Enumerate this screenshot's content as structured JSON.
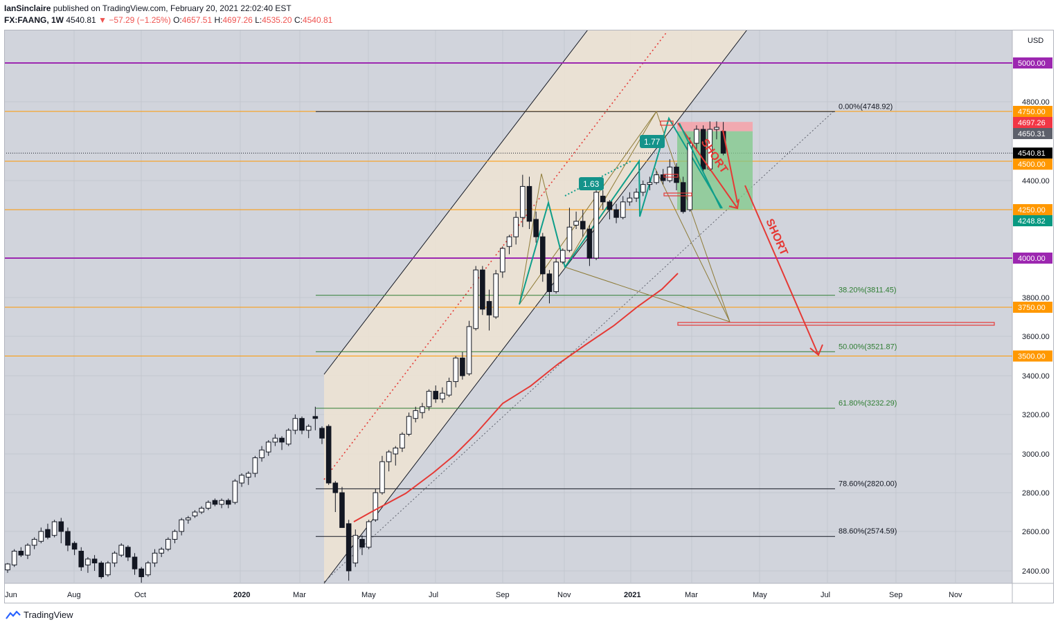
{
  "header": {
    "author": "IanSinclaire",
    "published_text": "published on TradingView.com, February 20, 2021 22:02:40 EST",
    "symbol": "FX:FAANG, 1W",
    "last": "4540.81",
    "change": "−57.29 (−1.25%)",
    "o_label": "O:",
    "o_value": "4657.51",
    "h_label": "H:",
    "h_value": "4697.26",
    "l_label": "L:",
    "l_value": "4535.20",
    "c_label": "C:",
    "c_value": "4540.81"
  },
  "footer": {
    "brand": "TradingView"
  },
  "chart_data": {
    "type": "candlestick",
    "currency": "USD",
    "x_labels": [
      "Jun",
      "Aug",
      "Oct",
      "2020",
      "Mar",
      "May",
      "Jul",
      "Sep",
      "Nov",
      "2021",
      "Mar",
      "May",
      "Jul",
      "Sep",
      "Nov"
    ],
    "y_ticks": [
      "4800.00",
      "4400.00",
      "3800.00",
      "3600.00",
      "3400.00",
      "3200.00",
      "3000.00",
      "2800.00",
      "2600.00",
      "2400.00"
    ],
    "ylim": [
      2340,
      5170
    ],
    "price_labels": [
      {
        "text": "5000.00",
        "value": 5000,
        "color": "#9c27b0"
      },
      {
        "text": "4750.00",
        "value": 4750,
        "color": "#ff9800"
      },
      {
        "text": "4697.26",
        "value": 4697.26,
        "color": "#f23645"
      },
      {
        "text": "4650.31",
        "value": 4650.31,
        "color": "#5d606b"
      },
      {
        "text": "4540.81",
        "value": 4540.81,
        "color": "#000000"
      },
      {
        "text": "4500.00",
        "value": 4500,
        "color": "#ff9800"
      },
      {
        "text": "4250.00",
        "value": 4250,
        "color": "#ff9800"
      },
      {
        "text": "4248.82",
        "value": 4248.82,
        "color": "#089981"
      },
      {
        "text": "4000.00",
        "value": 4000,
        "color": "#9c27b0"
      },
      {
        "text": "3750.00",
        "value": 3750,
        "color": "#ff9800"
      },
      {
        "text": "3500.00",
        "value": 3500,
        "color": "#ff9800"
      }
    ],
    "fib_levels": [
      {
        "text": "0.00%(4748.92)",
        "value": 4748.92,
        "color": "#131722"
      },
      {
        "text": "38.20%(3811.45)",
        "value": 3811.45,
        "color": "#2e7d32"
      },
      {
        "text": "50.00%(3521.87)",
        "value": 3521.87,
        "color": "#2e7d32"
      },
      {
        "text": "61.80%(3232.29)",
        "value": 3232.29,
        "color": "#2e7d32"
      },
      {
        "text": "78.60%(2820.00)",
        "value": 2820,
        "color": "#131722"
      },
      {
        "text": "88.60%(2574.59)",
        "value": 2574.59,
        "color": "#131722"
      }
    ],
    "annotations": [
      "1.63",
      "1.77",
      "SHORT",
      "SHORT"
    ],
    "candles": [
      [
        2405,
        2435,
        2390,
        2440
      ],
      [
        2430,
        2500,
        2420,
        2510
      ],
      [
        2500,
        2480,
        2470,
        2520
      ],
      [
        2480,
        2530,
        2460,
        2540
      ],
      [
        2530,
        2560,
        2510,
        2570
      ],
      [
        2550,
        2600,
        2540,
        2620
      ],
      [
        2610,
        2570,
        2560,
        2640
      ],
      [
        2580,
        2650,
        2570,
        2660
      ],
      [
        2650,
        2600,
        2540,
        2670
      ],
      [
        2600,
        2530,
        2500,
        2620
      ],
      [
        2540,
        2510,
        2480,
        2550
      ],
      [
        2500,
        2420,
        2400,
        2520
      ],
      [
        2430,
        2460,
        2390,
        2470
      ],
      [
        2460,
        2440,
        2400,
        2480
      ],
      [
        2440,
        2370,
        2360,
        2450
      ],
      [
        2380,
        2440,
        2370,
        2450
      ],
      [
        2440,
        2490,
        2420,
        2500
      ],
      [
        2480,
        2530,
        2470,
        2540
      ],
      [
        2520,
        2470,
        2450,
        2530
      ],
      [
        2470,
        2410,
        2380,
        2490
      ],
      [
        2410,
        2370,
        2340,
        2420
      ],
      [
        2380,
        2440,
        2370,
        2450
      ],
      [
        2440,
        2490,
        2420,
        2510
      ],
      [
        2490,
        2510,
        2470,
        2520
      ],
      [
        2510,
        2560,
        2500,
        2570
      ],
      [
        2560,
        2600,
        2540,
        2610
      ],
      [
        2600,
        2660,
        2580,
        2670
      ],
      [
        2660,
        2670,
        2640,
        2680
      ],
      [
        2680,
        2700,
        2670,
        2710
      ],
      [
        2700,
        2720,
        2690,
        2730
      ],
      [
        2720,
        2750,
        2710,
        2760
      ],
      [
        2760,
        2740,
        2730,
        2770
      ],
      [
        2740,
        2760,
        2720,
        2770
      ],
      [
        2760,
        2740,
        2720,
        2770
      ],
      [
        2750,
        2860,
        2740,
        2870
      ],
      [
        2850,
        2890,
        2830,
        2900
      ],
      [
        2880,
        2900,
        2840,
        2910
      ],
      [
        2900,
        2980,
        2880,
        2990
      ],
      [
        2980,
        3020,
        2960,
        3040
      ],
      [
        3010,
        3060,
        2990,
        3070
      ],
      [
        3060,
        3080,
        3040,
        3100
      ],
      [
        3080,
        3060,
        3020,
        3090
      ],
      [
        3050,
        3120,
        3040,
        3130
      ],
      [
        3120,
        3180,
        3100,
        3200
      ],
      [
        3180,
        3120,
        3100,
        3190
      ],
      [
        3120,
        3140,
        3080,
        3150
      ],
      [
        3190,
        3180,
        3120,
        3240
      ],
      [
        3130,
        3080,
        3050,
        3140
      ],
      [
        3140,
        2850,
        2840,
        3150
      ],
      [
        2850,
        2800,
        2700,
        2860
      ],
      [
        2800,
        2620,
        2620,
        2830
      ],
      [
        2640,
        2400,
        2350,
        2660
      ],
      [
        2440,
        2580,
        2420,
        2610
      ],
      [
        2560,
        2520,
        2480,
        2580
      ],
      [
        2520,
        2650,
        2510,
        2660
      ],
      [
        2660,
        2800,
        2650,
        2820
      ],
      [
        2800,
        2960,
        2790,
        2990
      ],
      [
        2960,
        3010,
        2910,
        3020
      ],
      [
        3000,
        3030,
        2940,
        3040
      ],
      [
        3030,
        3100,
        3010,
        3110
      ],
      [
        3100,
        3190,
        3090,
        3210
      ],
      [
        3180,
        3220,
        3160,
        3240
      ],
      [
        3210,
        3240,
        3180,
        3260
      ],
      [
        3240,
        3320,
        3220,
        3330
      ],
      [
        3320,
        3280,
        3260,
        3350
      ],
      [
        3280,
        3310,
        3260,
        3340
      ],
      [
        3300,
        3370,
        3290,
        3390
      ],
      [
        3370,
        3490,
        3340,
        3500
      ],
      [
        3490,
        3400,
        3380,
        3520
      ],
      [
        3410,
        3650,
        3400,
        3680
      ],
      [
        3640,
        3940,
        3630,
        3960
      ],
      [
        3940,
        3740,
        3710,
        3960
      ],
      [
        3780,
        3710,
        3630,
        3840
      ],
      [
        3700,
        3920,
        3690,
        3940
      ],
      [
        3930,
        4050,
        3900,
        4060
      ],
      [
        4060,
        4110,
        4020,
        4120
      ],
      [
        4110,
        4210,
        4070,
        4240
      ],
      [
        4210,
        4370,
        4160,
        4430
      ],
      [
        4370,
        4190,
        4150,
        4420
      ],
      [
        4200,
        4110,
        4080,
        4240
      ],
      [
        4110,
        3920,
        3880,
        4130
      ],
      [
        3920,
        3830,
        3770,
        3940
      ],
      [
        3830,
        3980,
        3820,
        4000
      ],
      [
        3980,
        4040,
        3970,
        4050
      ],
      [
        4040,
        4160,
        4030,
        4260
      ],
      [
        4170,
        4190,
        4150,
        4240
      ],
      [
        4190,
        4150,
        4110,
        4250
      ],
      [
        4150,
        4000,
        3960,
        4170
      ],
      [
        4000,
        4340,
        3990,
        4360
      ],
      [
        4320,
        4290,
        4250,
        4350
      ],
      [
        4290,
        4250,
        4200,
        4300
      ],
      [
        4250,
        4210,
        4180,
        4280
      ],
      [
        4210,
        4290,
        4200,
        4320
      ],
      [
        4290,
        4310,
        4270,
        4340
      ],
      [
        4310,
        4340,
        4290,
        4360
      ],
      [
        4340,
        4380,
        4320,
        4400
      ],
      [
        4380,
        4390,
        4350,
        4420
      ],
      [
        4390,
        4430,
        4380,
        4450
      ],
      [
        4430,
        4400,
        4380,
        4460
      ],
      [
        4400,
        4470,
        4390,
        4510
      ],
      [
        4470,
        4390,
        4350,
        4490
      ],
      [
        4390,
        4240,
        4230,
        4420
      ],
      [
        4250,
        4590,
        4240,
        4620
      ],
      [
        4590,
        4660,
        4560,
        4680
      ],
      [
        4660,
        4460,
        4440,
        4680
      ],
      [
        4460,
        4660,
        4450,
        4700
      ],
      [
        4660,
        4670,
        4610,
        4700
      ],
      [
        4650,
        4540,
        4530,
        4697
      ]
    ],
    "ma_line_color": "#e53935"
  }
}
